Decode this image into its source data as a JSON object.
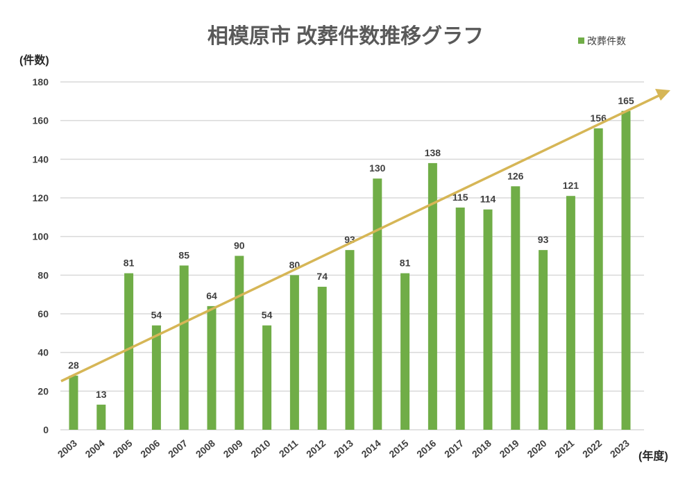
{
  "chart_data": {
    "type": "bar",
    "title": "相模原市 改葬件数推移グラフ",
    "ylabel": "(件数)",
    "xlabel": "(年度)",
    "ylim": [
      0,
      180
    ],
    "yticks": [
      0,
      20,
      40,
      60,
      80,
      100,
      120,
      140,
      160,
      180
    ],
    "grid": true,
    "legend": {
      "position": "top-right",
      "entries": [
        "改葬件数"
      ]
    },
    "categories": [
      "2003",
      "2004",
      "2005",
      "2006",
      "2007",
      "2008",
      "2009",
      "2010",
      "2011",
      "2012",
      "2013",
      "2014",
      "2015",
      "2016",
      "2017",
      "2018",
      "2019",
      "2020",
      "2021",
      "2022",
      "2023"
    ],
    "series": [
      {
        "name": "改葬件数",
        "values": [
          28,
          13,
          81,
          54,
          85,
          64,
          90,
          54,
          80,
          74,
          93,
          130,
          81,
          138,
          115,
          114,
          126,
          93,
          121,
          156,
          165
        ]
      }
    ],
    "annotations": [
      {
        "type": "trend-arrow",
        "description": "upward trend arrow"
      }
    ],
    "colors": {
      "bar": "#70AD47",
      "arrow": "#D6B656",
      "grid": "#D9D9D9"
    }
  }
}
